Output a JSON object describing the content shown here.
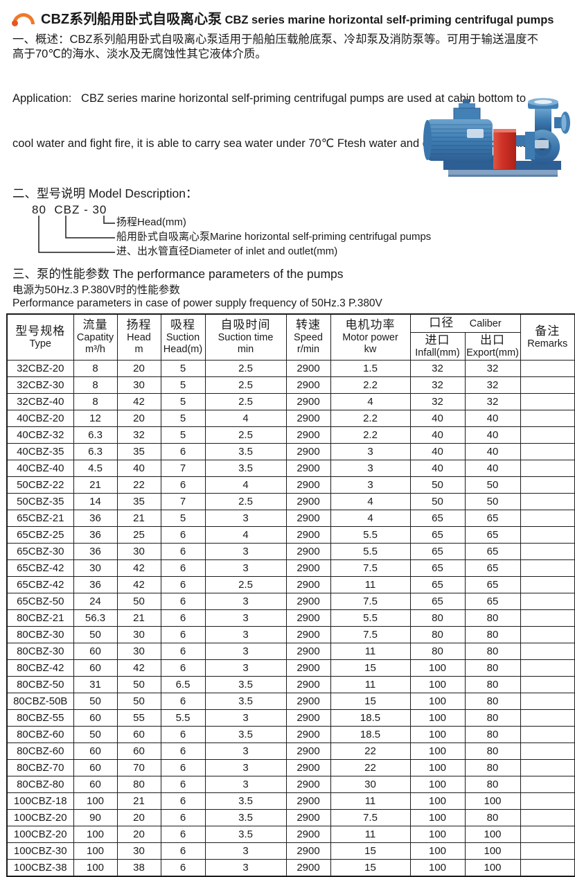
{
  "colors": {
    "accent_orange": "#ee7a2a",
    "text_black": "#1a1a1a",
    "motor_blue": "#4280b5",
    "motor_blue_dark": "#2c5d92",
    "coupling_red": "#cf3127",
    "base_blue": "#2e5f94"
  },
  "header": {
    "title_zh": "CBZ系列船用卧式自吸离心泵",
    "title_en": "CBZ series marine horizontal self-priming centrifugal pumps"
  },
  "overview": {
    "zh_lines": [
      "一、概述：CBZ系列船用卧式自吸离心泵适用于船舶压载舱底泵、冷却泵及消防泵等。可用于输送温度不",
      "高于70℃的海水、淡水及无腐蚀性其它液体介质。"
    ],
    "en_lines": [
      "Application:   CBZ series marine horizontal self-priming centrifugal pumps are used at cabin bottom to",
      "cool water and fight fire, it is able to carry sea water under 70℃ Ftesh water and other Corrosion of liquid."
    ]
  },
  "model_section": {
    "heading": "二、型号说明 Model Description：",
    "code": "80  CBZ - 30",
    "labels": [
      "扬程Head(mm)",
      "船用卧式自吸离心泵Marine horizontal self-priming centrifugal pumps",
      "进、出水管直径Diameter of inlet and outlet(mm)"
    ]
  },
  "performance_section": {
    "heading": "三、泵的性能参数  The performance parameters of the pumps",
    "note_zh": "电源为50Hz.3 P.380V时的性能参数",
    "note_en": "Performance parameters in case of power supply frequency of 50Hz.3 P.380V"
  },
  "table": {
    "headers": {
      "type": {
        "zh": "型号规格",
        "en": "Type"
      },
      "capacity": {
        "zh": "流量",
        "en": "Capatity",
        "unit": "m³/h"
      },
      "head": {
        "zh": "扬程",
        "en": "Head",
        "unit": "m"
      },
      "suction_head": {
        "zh": "吸程",
        "en": "Suction",
        "unit": "Head(m)"
      },
      "suction_time": {
        "zh": "自吸时间",
        "en": "Suction time",
        "unit": "min"
      },
      "speed": {
        "zh": "转速",
        "en": "Speed",
        "unit": "r/min"
      },
      "motor_power": {
        "zh": "电机功率",
        "en": "Motor power",
        "unit": "kw"
      },
      "caliber": {
        "zh": "口径",
        "en": "Caliber"
      },
      "infall": {
        "zh": "进口",
        "en": "Infall(mm)"
      },
      "export": {
        "zh": "出口",
        "en": "Export(mm)"
      },
      "remarks": {
        "zh": "备注",
        "en": "Remarks"
      }
    },
    "rows": [
      [
        "32CBZ-20",
        "8",
        "20",
        "5",
        "2.5",
        "2900",
        "1.5",
        "32",
        "32",
        ""
      ],
      [
        "32CBZ-30",
        "8",
        "30",
        "5",
        "2.5",
        "2900",
        "2.2",
        "32",
        "32",
        ""
      ],
      [
        "32CBZ-40",
        "8",
        "42",
        "5",
        "2.5",
        "2900",
        "4",
        "32",
        "32",
        ""
      ],
      [
        "40CBZ-20",
        "12",
        "20",
        "5",
        "4",
        "2900",
        "2.2",
        "40",
        "40",
        ""
      ],
      [
        "40CBZ-32",
        "6.3",
        "32",
        "5",
        "2.5",
        "2900",
        "2.2",
        "40",
        "40",
        ""
      ],
      [
        "40CBZ-35",
        "6.3",
        "35",
        "6",
        "3.5",
        "2900",
        "3",
        "40",
        "40",
        ""
      ],
      [
        "40CBZ-40",
        "4.5",
        "40",
        "7",
        "3.5",
        "2900",
        "3",
        "40",
        "40",
        ""
      ],
      [
        "50CBZ-22",
        "21",
        "22",
        "6",
        "4",
        "2900",
        "3",
        "50",
        "50",
        ""
      ],
      [
        "50CBZ-35",
        "14",
        "35",
        "7",
        "2.5",
        "2900",
        "4",
        "50",
        "50",
        ""
      ],
      [
        "65CBZ-21",
        "36",
        "21",
        "5",
        "3",
        "2900",
        "4",
        "65",
        "65",
        ""
      ],
      [
        "65CBZ-25",
        "36",
        "25",
        "6",
        "4",
        "2900",
        "5.5",
        "65",
        "65",
        ""
      ],
      [
        "65CBZ-30",
        "36",
        "30",
        "6",
        "3",
        "2900",
        "5.5",
        "65",
        "65",
        ""
      ],
      [
        "65CBZ-42",
        "30",
        "42",
        "6",
        "3",
        "2900",
        "7.5",
        "65",
        "65",
        ""
      ],
      [
        "65CBZ-42",
        "36",
        "42",
        "6",
        "2.5",
        "2900",
        "11",
        "65",
        "65",
        ""
      ],
      [
        "65CBZ-50",
        "24",
        "50",
        "6",
        "3",
        "2900",
        "7.5",
        "65",
        "65",
        ""
      ],
      [
        "80CBZ-21",
        "56.3",
        "21",
        "6",
        "3",
        "2900",
        "5.5",
        "80",
        "80",
        ""
      ],
      [
        "80CBZ-30",
        "50",
        "30",
        "6",
        "3",
        "2900",
        "7.5",
        "80",
        "80",
        ""
      ],
      [
        "80CBZ-30",
        "60",
        "30",
        "6",
        "3",
        "2900",
        "11",
        "80",
        "80",
        ""
      ],
      [
        "80CBZ-42",
        "60",
        "42",
        "6",
        "3",
        "2900",
        "15",
        "100",
        "80",
        ""
      ],
      [
        "80CBZ-50",
        "31",
        "50",
        "6.5",
        "3.5",
        "2900",
        "11",
        "100",
        "80",
        ""
      ],
      [
        "80CBZ-50B",
        "50",
        "50",
        "6",
        "3.5",
        "2900",
        "15",
        "100",
        "80",
        ""
      ],
      [
        "80CBZ-55",
        "60",
        "55",
        "5.5",
        "3",
        "2900",
        "18.5",
        "100",
        "80",
        ""
      ],
      [
        "80CBZ-60",
        "50",
        "60",
        "6",
        "3.5",
        "2900",
        "18.5",
        "100",
        "80",
        ""
      ],
      [
        "80CBZ-60",
        "60",
        "60",
        "6",
        "3",
        "2900",
        "22",
        "100",
        "80",
        ""
      ],
      [
        "80CBZ-70",
        "60",
        "70",
        "6",
        "3",
        "2900",
        "22",
        "100",
        "80",
        ""
      ],
      [
        "80CBZ-80",
        "60",
        "80",
        "6",
        "3",
        "2900",
        "30",
        "100",
        "80",
        ""
      ],
      [
        "100CBZ-18",
        "100",
        "21",
        "6",
        "3.5",
        "2900",
        "11",
        "100",
        "100",
        ""
      ],
      [
        "100CBZ-20",
        "90",
        "20",
        "6",
        "3.5",
        "2900",
        "7.5",
        "100",
        "80",
        ""
      ],
      [
        "100CBZ-20",
        "100",
        "20",
        "6",
        "3.5",
        "2900",
        "11",
        "100",
        "100",
        ""
      ],
      [
        "100CBZ-30",
        "100",
        "30",
        "6",
        "3",
        "2900",
        "15",
        "100",
        "100",
        ""
      ],
      [
        "100CBZ-38",
        "100",
        "38",
        "6",
        "3",
        "2900",
        "15",
        "100",
        "100",
        ""
      ]
    ]
  }
}
